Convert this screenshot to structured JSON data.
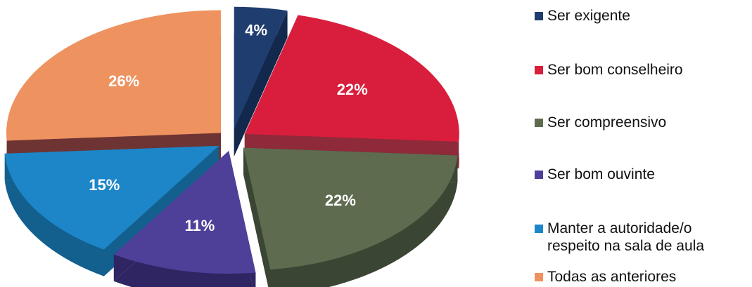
{
  "chart_data": {
    "type": "pie",
    "categories": [
      "Ser exigente",
      "Ser bom conselheiro",
      "Ser compreensivo",
      "Ser bom ouvinte",
      "Manter a autoridade/o respeito na sala de aula",
      "Todas as anteriores"
    ],
    "values": [
      4,
      22,
      22,
      11,
      15,
      26
    ],
    "data_labels": [
      "4%",
      "22%",
      "22%",
      "11%",
      "15%",
      "26%"
    ],
    "colors": [
      "#1f3d6e",
      "#d81e3c",
      "#5e6b4f",
      "#4e3f99",
      "#1d86c8",
      "#ee9260"
    ],
    "side_colors": [
      "#12284d",
      "#8e2a3a",
      "#3a4533",
      "#2e2562",
      "#13608f",
      "#6e3434"
    ],
    "legend_position": "right",
    "exploded": true,
    "three_d": true
  },
  "legend": {
    "items": [
      {
        "label": "Ser exigente",
        "color": "#1f3d6e"
      },
      {
        "label": "Ser bom conselheiro",
        "color": "#d81e3c"
      },
      {
        "label": "Ser compreensivo",
        "color": "#5e6b4f"
      },
      {
        "label": "Ser bom ouvinte",
        "color": "#4e3f99"
      },
      {
        "label": "Manter a autoridade/o respeito na sala de aula",
        "color": "#1d86c8"
      },
      {
        "label": "Todas as anteriores",
        "color": "#ee9260"
      }
    ]
  }
}
